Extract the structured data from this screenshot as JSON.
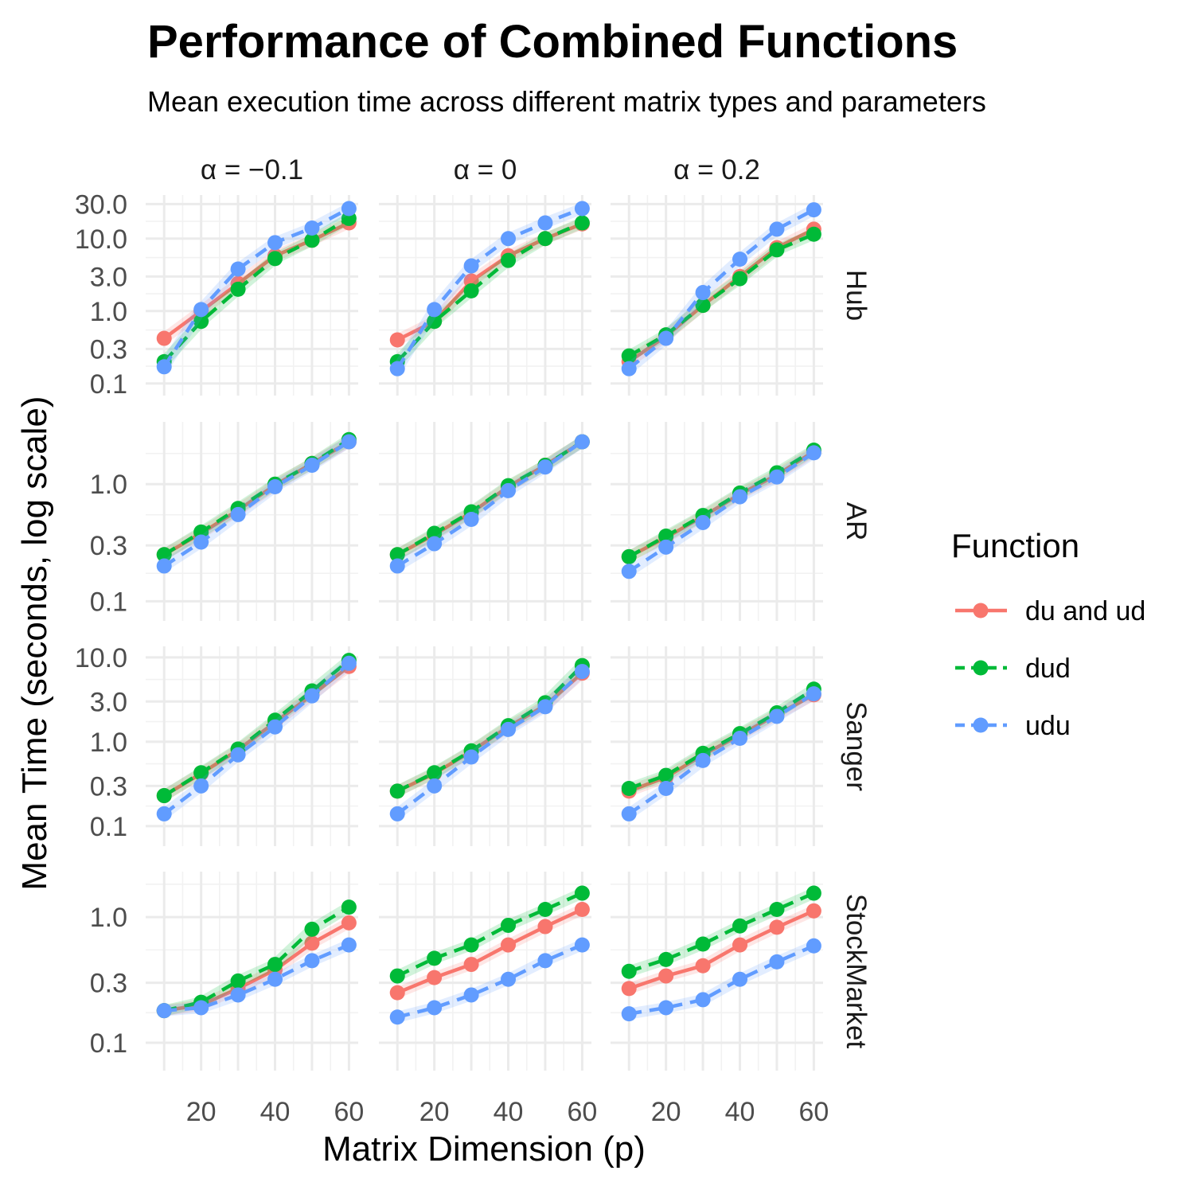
{
  "chart_data": {
    "type": "line",
    "title": "Performance of Combined Functions",
    "subtitle": "Mean execution time across different matrix types and parameters",
    "xlabel": "Matrix Dimension (p)",
    "ylabel": "Mean Time (seconds, log scale)",
    "x": [
      10,
      20,
      30,
      40,
      50,
      60
    ],
    "x_ticks": [
      20,
      40,
      60
    ],
    "y_scale": "log",
    "columns": [
      "α = −0.1",
      "α = 0",
      "α = 0.2"
    ],
    "rows": [
      "Hub",
      "AR",
      "Sanger",
      "StockMarket"
    ],
    "row_y_ticks": [
      [
        "30.0",
        "10.0",
        "3.0",
        "1.0",
        "0.3",
        "0.1"
      ],
      [
        "1.0",
        "0.3",
        "0.1"
      ],
      [
        "10.0",
        "3.0",
        "1.0",
        "0.3",
        "0.1"
      ],
      [
        "1.0",
        "0.3",
        "0.1"
      ]
    ],
    "legend": {
      "title": "Function",
      "position": "right",
      "items": [
        {
          "name": "du and ud",
          "color": "#F8766D",
          "dash": "solid"
        },
        {
          "name": "dud",
          "color": "#00BA38",
          "dash": "dashed"
        },
        {
          "name": "udu",
          "color": "#619CFF",
          "dash": "dashed"
        }
      ]
    },
    "panels": [
      {
        "row": "Hub",
        "column": "α = −0.1",
        "series": [
          {
            "name": "du and ud",
            "values": [
              0.42,
              1.0,
              2.4,
              5.8,
              9.5,
              16.5
            ]
          },
          {
            "name": "dud",
            "values": [
              0.2,
              0.72,
              2.0,
              5.3,
              9.5,
              19.0
            ]
          },
          {
            "name": "udu",
            "values": [
              0.17,
              1.05,
              3.8,
              8.8,
              14.0,
              26.0
            ]
          }
        ]
      },
      {
        "row": "Hub",
        "column": "α = 0",
        "series": [
          {
            "name": "du and ud",
            "values": [
              0.4,
              0.72,
              2.6,
              5.8,
              10.0,
              16.0
            ]
          },
          {
            "name": "dud",
            "values": [
              0.2,
              0.72,
              1.9,
              5.0,
              10.0,
              16.5
            ]
          },
          {
            "name": "udu",
            "values": [
              0.16,
              1.05,
              4.2,
              10.0,
              16.5,
              26.0
            ]
          }
        ]
      },
      {
        "row": "Hub",
        "column": "α = 0.2",
        "series": [
          {
            "name": "du and ud",
            "values": [
              0.2,
              0.45,
              1.2,
              3.0,
              7.5,
              13.5
            ]
          },
          {
            "name": "dud",
            "values": [
              0.24,
              0.47,
              1.2,
              2.8,
              7.0,
              11.5
            ]
          },
          {
            "name": "udu",
            "values": [
              0.16,
              0.42,
              1.8,
              5.2,
              13.5,
              25.0
            ]
          }
        ]
      },
      {
        "row": "AR",
        "column": "α = −0.1",
        "series": [
          {
            "name": "du and ud",
            "values": [
              0.25,
              0.38,
              0.6,
              0.98,
              1.5,
              2.3
            ]
          },
          {
            "name": "dud",
            "values": [
              0.25,
              0.39,
              0.62,
              1.0,
              1.5,
              2.4
            ]
          },
          {
            "name": "udu",
            "values": [
              0.2,
              0.32,
              0.55,
              0.95,
              1.45,
              2.3
            ]
          }
        ]
      },
      {
        "row": "AR",
        "column": "α = 0",
        "series": [
          {
            "name": "du and ud",
            "values": [
              0.25,
              0.37,
              0.57,
              0.95,
              1.45,
              2.3
            ]
          },
          {
            "name": "dud",
            "values": [
              0.25,
              0.38,
              0.58,
              0.97,
              1.45,
              2.3
            ]
          },
          {
            "name": "udu",
            "values": [
              0.2,
              0.31,
              0.5,
              0.88,
              1.4,
              2.3
            ]
          }
        ]
      },
      {
        "row": "AR",
        "column": "α = 0.2",
        "series": [
          {
            "name": "du and ud",
            "values": [
              0.24,
              0.35,
              0.53,
              0.82,
              1.2,
              1.9
            ]
          },
          {
            "name": "dud",
            "values": [
              0.24,
              0.36,
              0.54,
              0.84,
              1.25,
              1.95
            ]
          },
          {
            "name": "udu",
            "values": [
              0.18,
              0.29,
              0.47,
              0.78,
              1.15,
              1.85
            ]
          }
        ]
      },
      {
        "row": "Sanger",
        "column": "α = −0.1",
        "series": [
          {
            "name": "du and ud",
            "values": [
              0.23,
              0.42,
              0.8,
              1.7,
              3.6,
              7.8
            ]
          },
          {
            "name": "dud",
            "values": [
              0.23,
              0.43,
              0.82,
              1.8,
              4.0,
              9.2
            ]
          },
          {
            "name": "udu",
            "values": [
              0.14,
              0.3,
              0.7,
              1.5,
              3.5,
              8.5
            ]
          }
        ]
      },
      {
        "row": "Sanger",
        "column": "α = 0",
        "series": [
          {
            "name": "du and ud",
            "values": [
              0.26,
              0.42,
              0.77,
              1.5,
              2.7,
              6.5
            ]
          },
          {
            "name": "dud",
            "values": [
              0.26,
              0.43,
              0.78,
              1.55,
              2.9,
              8.0
            ]
          },
          {
            "name": "udu",
            "values": [
              0.14,
              0.3,
              0.66,
              1.4,
              2.6,
              6.8
            ]
          }
        ]
      },
      {
        "row": "Sanger",
        "column": "α = 0.2",
        "series": [
          {
            "name": "du and ud",
            "values": [
              0.26,
              0.38,
              0.7,
              1.2,
              2.1,
              3.6
            ]
          },
          {
            "name": "dud",
            "values": [
              0.28,
              0.4,
              0.73,
              1.25,
              2.2,
              4.2
            ]
          },
          {
            "name": "udu",
            "values": [
              0.14,
              0.28,
              0.6,
              1.1,
              2.0,
              3.7
            ]
          }
        ]
      },
      {
        "row": "StockMarket",
        "column": "α = −0.1",
        "series": [
          {
            "name": "du and ud",
            "values": [
              0.18,
              0.2,
              0.27,
              0.38,
              0.62,
              0.9
            ]
          },
          {
            "name": "dud",
            "values": [
              0.18,
              0.21,
              0.31,
              0.42,
              0.8,
              1.2
            ]
          },
          {
            "name": "udu",
            "values": [
              0.18,
              0.19,
              0.24,
              0.32,
              0.45,
              0.6
            ]
          }
        ]
      },
      {
        "row": "StockMarket",
        "column": "α = 0",
        "series": [
          {
            "name": "du and ud",
            "values": [
              0.25,
              0.33,
              0.42,
              0.6,
              0.84,
              1.15
            ]
          },
          {
            "name": "dud",
            "values": [
              0.34,
              0.47,
              0.6,
              0.86,
              1.15,
              1.55
            ]
          },
          {
            "name": "udu",
            "values": [
              0.16,
              0.19,
              0.24,
              0.32,
              0.45,
              0.6
            ]
          }
        ]
      },
      {
        "row": "StockMarket",
        "column": "α = 0.2",
        "series": [
          {
            "name": "du and ud",
            "values": [
              0.27,
              0.34,
              0.41,
              0.6,
              0.83,
              1.12
            ]
          },
          {
            "name": "dud",
            "values": [
              0.37,
              0.46,
              0.61,
              0.85,
              1.15,
              1.55
            ]
          },
          {
            "name": "udu",
            "values": [
              0.17,
              0.19,
              0.22,
              0.32,
              0.44,
              0.59
            ]
          }
        ]
      }
    ]
  }
}
